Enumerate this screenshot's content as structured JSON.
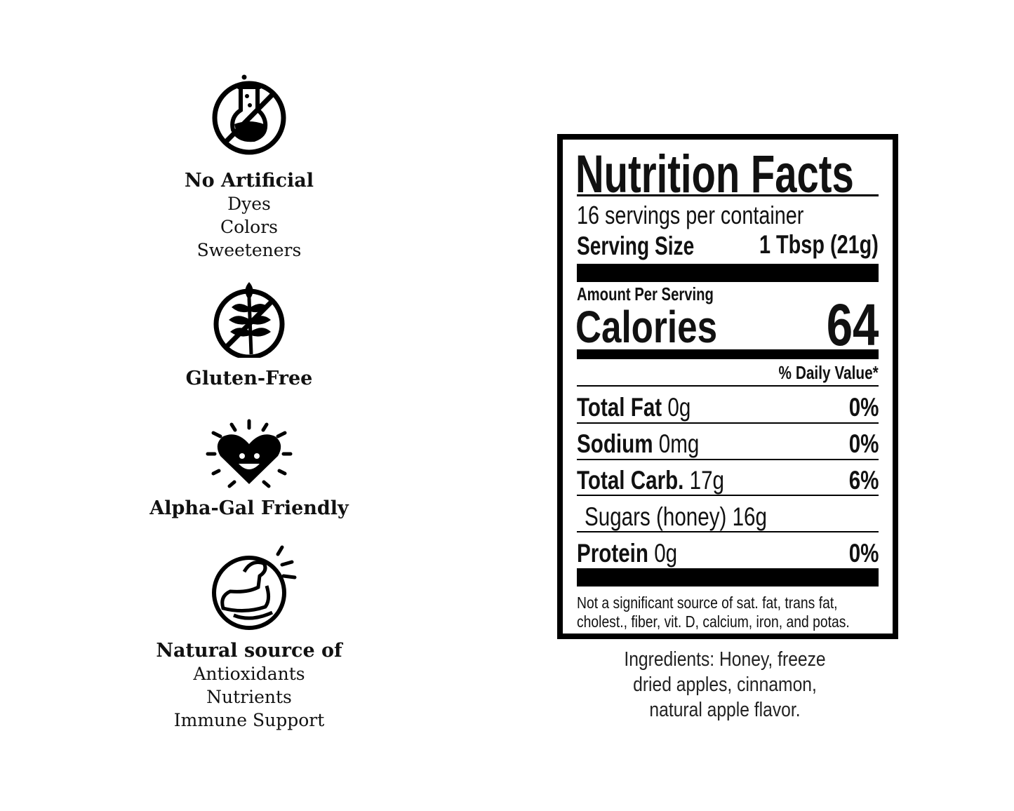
{
  "features": [
    {
      "icon": "no-artificial-flask-icon",
      "heading": "No Artificial",
      "lines": [
        "Dyes",
        "Colors",
        "Sweeteners"
      ]
    },
    {
      "icon": "gluten-free-wheat-icon",
      "heading": "Gluten-Free",
      "lines": []
    },
    {
      "icon": "smiling-heart-icon",
      "heading": "Alpha-Gal Friendly",
      "lines": []
    },
    {
      "icon": "flexed-arm-icon",
      "heading": "Natural source of",
      "lines": [
        "Antioxidants",
        "Nutrients",
        "Immune Support"
      ]
    }
  ],
  "label": {
    "title": "Nutrition Facts",
    "servings": "16 servings per container",
    "serving_size_label": "Serving Size",
    "serving_size_value": "1 Tbsp (21g)",
    "amount_per_serving": "Amount Per Serving",
    "calories_label": "Calories",
    "calories_value": "64",
    "daily_value_header": "% Daily Value*",
    "rows": [
      {
        "name": "Total Fat",
        "amount": "0g",
        "dv": "0%"
      },
      {
        "name": "Sodium",
        "amount": "0mg",
        "dv": "0%"
      },
      {
        "name": "Total Carb.",
        "amount": "17g",
        "dv": "6%"
      },
      {
        "name": "Sugars (honey) 16g",
        "amount": "",
        "dv": ""
      },
      {
        "name": "Protein",
        "amount": "0g",
        "dv": "0%"
      }
    ],
    "footnote": [
      "Not a significant source of sat. fat, trans fat,",
      "cholest., fiber, vit. D, calcium, iron, and potas."
    ]
  },
  "ingredients": [
    "Ingredients: Honey, freeze",
    "dried apples, cinnamon,",
    "natural apple flavor."
  ]
}
